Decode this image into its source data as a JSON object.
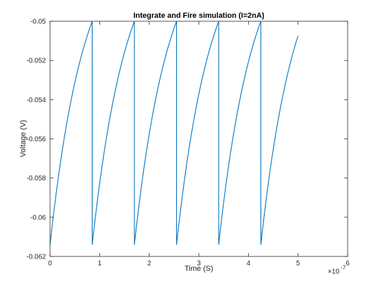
{
  "chart_data": {
    "type": "line",
    "title": "Integrate and Fire simulation (I=2nA)",
    "xlabel": "Time (S)",
    "ylabel": "Voltage (V)",
    "x_exponent_label": "×10",
    "x_exponent_power": "-7",
    "xlim": [
      0,
      6
    ],
    "ylim": [
      -0.062,
      -0.05
    ],
    "xticks": [
      0,
      1,
      2,
      3,
      4,
      5,
      6
    ],
    "xtick_labels": [
      "0",
      "1",
      "2",
      "3",
      "4",
      "5",
      "6"
    ],
    "yticks": [
      -0.062,
      -0.06,
      -0.058,
      -0.056,
      -0.054,
      -0.052,
      -0.05
    ],
    "ytick_labels": [
      "-0.062",
      "-0.06",
      "-0.058",
      "-0.056",
      "-0.054",
      "-0.052",
      "-0.05"
    ],
    "grid": false,
    "line_color": "#0072bd",
    "series": [
      {
        "segments": [
          {
            "x0": 0.0,
            "x1": 0.85,
            "y0": -0.0614,
            "y1": -0.05
          },
          {
            "x0": 0.85,
            "x1": 1.7,
            "y0": -0.0614,
            "y1": -0.05
          },
          {
            "x0": 1.7,
            "x1": 2.55,
            "y0": -0.0614,
            "y1": -0.05
          },
          {
            "x0": 2.55,
            "x1": 3.4,
            "y0": -0.0614,
            "y1": -0.05
          },
          {
            "x0": 3.4,
            "x1": 4.25,
            "y0": -0.0614,
            "y1": -0.05
          },
          {
            "x0": 4.25,
            "x1": 5.0,
            "y0": -0.0614,
            "y1": -0.0509
          }
        ],
        "curve_tau": 0.7
      }
    ]
  }
}
